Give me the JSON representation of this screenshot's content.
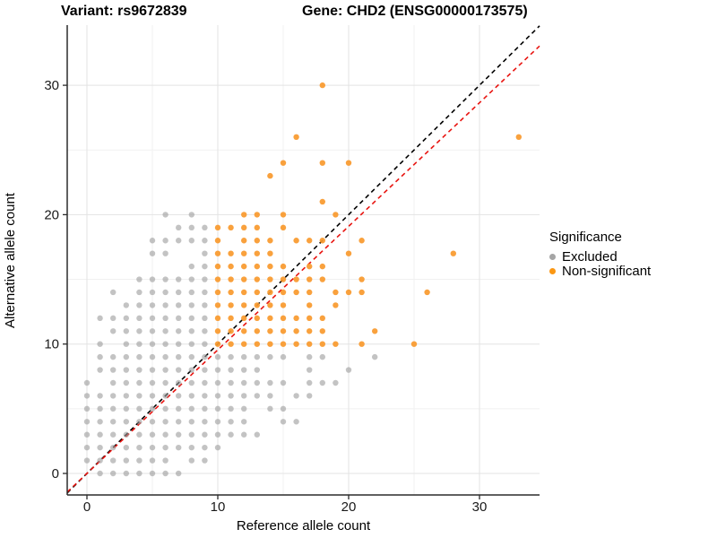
{
  "titles": {
    "variant": "Variant: rs9672839",
    "gene": "Gene: CHD2 (ENSG00000173575)"
  },
  "axes": {
    "x_label": "Reference allele count",
    "y_label": "Alternative allele count",
    "x_ticks": [
      0,
      10,
      20,
      30
    ],
    "y_ticks": [
      0,
      10,
      20,
      30
    ],
    "x_minor": [
      5,
      15,
      25
    ],
    "y_minor": [
      5,
      15,
      25
    ]
  },
  "legend": {
    "title": "Significance",
    "items": [
      {
        "label": "Excluded",
        "color": "#A5A5A5"
      },
      {
        "label": "Non-significant",
        "color": "#FB9713"
      }
    ]
  },
  "colors": {
    "excluded_point": "#9B9B9B",
    "non_significant_point": "#F8992C",
    "identity_line": "#000000",
    "expected_line": "#E81410",
    "axis_line": "#2B2B2B",
    "major_grid": "#E3E3E3",
    "minor_grid": "#F1F1F1",
    "tick_text": "#1A1A1A"
  },
  "chart_data": {
    "type": "scatter",
    "title": "Variant: rs9672839 | Gene: CHD2 (ENSG00000173575)",
    "xlabel": "Reference allele count",
    "ylabel": "Alternative allele count",
    "xlim": [
      -1.5,
      34.6
    ],
    "ylim": [
      -1.7,
      34.6
    ],
    "grid": true,
    "legend_position": "right",
    "legend_title": "Significance",
    "series_names": [
      "Excluded",
      "Non-significant"
    ],
    "reference_lines": [
      {
        "name": "identity",
        "slope": 1.0,
        "intercept": 0,
        "color": "#000000",
        "style": "dashed"
      },
      {
        "name": "expected-ratio",
        "slope": 0.955,
        "intercept": 0,
        "color": "#E81410",
        "style": "dashed"
      }
    ],
    "rows": [
      {
        "alt": 0,
        "excluded": [
          1,
          2,
          3,
          4,
          5,
          6,
          7
        ],
        "non_significant": []
      },
      {
        "alt": 1,
        "excluded": [
          0,
          1,
          2,
          3,
          4,
          5,
          6,
          8,
          9
        ],
        "non_significant": []
      },
      {
        "alt": 2,
        "excluded": [
          0,
          1,
          2,
          3,
          4,
          5,
          6,
          7,
          8,
          9,
          10
        ],
        "non_significant": []
      },
      {
        "alt": 3,
        "excluded": [
          0,
          1,
          2,
          3,
          4,
          5,
          6,
          7,
          8,
          9,
          10,
          11,
          12,
          13
        ],
        "non_significant": []
      },
      {
        "alt": 4,
        "excluded": [
          0,
          1,
          2,
          3,
          4,
          5,
          6,
          7,
          8,
          9,
          10,
          11,
          12,
          15,
          16
        ],
        "non_significant": []
      },
      {
        "alt": 5,
        "excluded": [
          0,
          1,
          2,
          3,
          4,
          5,
          6,
          7,
          8,
          9,
          10,
          11,
          12,
          14,
          15
        ],
        "non_significant": []
      },
      {
        "alt": 6,
        "excluded": [
          0,
          1,
          2,
          3,
          4,
          5,
          6,
          7,
          8,
          9,
          10,
          11,
          12,
          13,
          14,
          16,
          17
        ],
        "non_significant": []
      },
      {
        "alt": 7,
        "excluded": [
          0,
          2,
          3,
          4,
          5,
          6,
          7,
          8,
          9,
          10,
          11,
          12,
          13,
          14,
          15,
          17,
          18,
          19
        ],
        "non_significant": []
      },
      {
        "alt": 8,
        "excluded": [
          1,
          2,
          3,
          4,
          5,
          6,
          7,
          8,
          9,
          10,
          11,
          12,
          13,
          17,
          20
        ],
        "non_significant": []
      },
      {
        "alt": 9,
        "excluded": [
          1,
          2,
          3,
          4,
          5,
          6,
          7,
          8,
          9,
          10,
          11,
          12,
          13,
          14,
          15,
          17,
          18,
          22
        ],
        "non_significant": []
      },
      {
        "alt": 10,
        "excluded": [
          1,
          3,
          4,
          5,
          6,
          7,
          8,
          9
        ],
        "non_significant": [
          10,
          11,
          12,
          13,
          14,
          15,
          16,
          17,
          18,
          19,
          21,
          25
        ]
      },
      {
        "alt": 11,
        "excluded": [
          2,
          3,
          4,
          5,
          6,
          7,
          8,
          9
        ],
        "non_significant": [
          10,
          11,
          12,
          13,
          14,
          15,
          16,
          17,
          18,
          22
        ]
      },
      {
        "alt": 12,
        "excluded": [
          1,
          2,
          3,
          4,
          5,
          6,
          7,
          8,
          9
        ],
        "non_significant": [
          10,
          11,
          12,
          13,
          14,
          15,
          16,
          17,
          18
        ]
      },
      {
        "alt": 13,
        "excluded": [
          3,
          4,
          5,
          6,
          7,
          8,
          9
        ],
        "non_significant": [
          10,
          11,
          12,
          13,
          14,
          15,
          17,
          19
        ]
      },
      {
        "alt": 14,
        "excluded": [
          2,
          4,
          5,
          6,
          7,
          8,
          9
        ],
        "non_significant": [
          10,
          11,
          12,
          13,
          14,
          15,
          16,
          17,
          19,
          20,
          21,
          26
        ]
      },
      {
        "alt": 15,
        "excluded": [
          4,
          5,
          6,
          7,
          8,
          9
        ],
        "non_significant": [
          10,
          11,
          12,
          13,
          14,
          15,
          16,
          17,
          18,
          21
        ]
      },
      {
        "alt": 16,
        "excluded": [
          8,
          9
        ],
        "non_significant": [
          10,
          11,
          12,
          13,
          14,
          15,
          17,
          18
        ]
      },
      {
        "alt": 17,
        "excluded": [
          5,
          6,
          9
        ],
        "non_significant": [
          10,
          11,
          12,
          13,
          14,
          20,
          28
        ]
      },
      {
        "alt": 18,
        "excluded": [
          5,
          6,
          7,
          8,
          9
        ],
        "non_significant": [
          10,
          12,
          13,
          14,
          16,
          17,
          18,
          21
        ]
      },
      {
        "alt": 19,
        "excluded": [
          7,
          8,
          9
        ],
        "non_significant": [
          10,
          11,
          12,
          13,
          15
        ]
      },
      {
        "alt": 20,
        "excluded": [
          6,
          8
        ],
        "non_significant": [
          12,
          13,
          15,
          19
        ]
      },
      {
        "alt": 21,
        "excluded": [],
        "non_significant": [
          18
        ]
      },
      {
        "alt": 23,
        "excluded": [],
        "non_significant": [
          14
        ]
      },
      {
        "alt": 24,
        "excluded": [],
        "non_significant": [
          15,
          18,
          20
        ]
      },
      {
        "alt": 26,
        "excluded": [],
        "non_significant": [
          16,
          33
        ]
      },
      {
        "alt": 30,
        "excluded": [],
        "non_significant": [
          18
        ]
      }
    ]
  }
}
